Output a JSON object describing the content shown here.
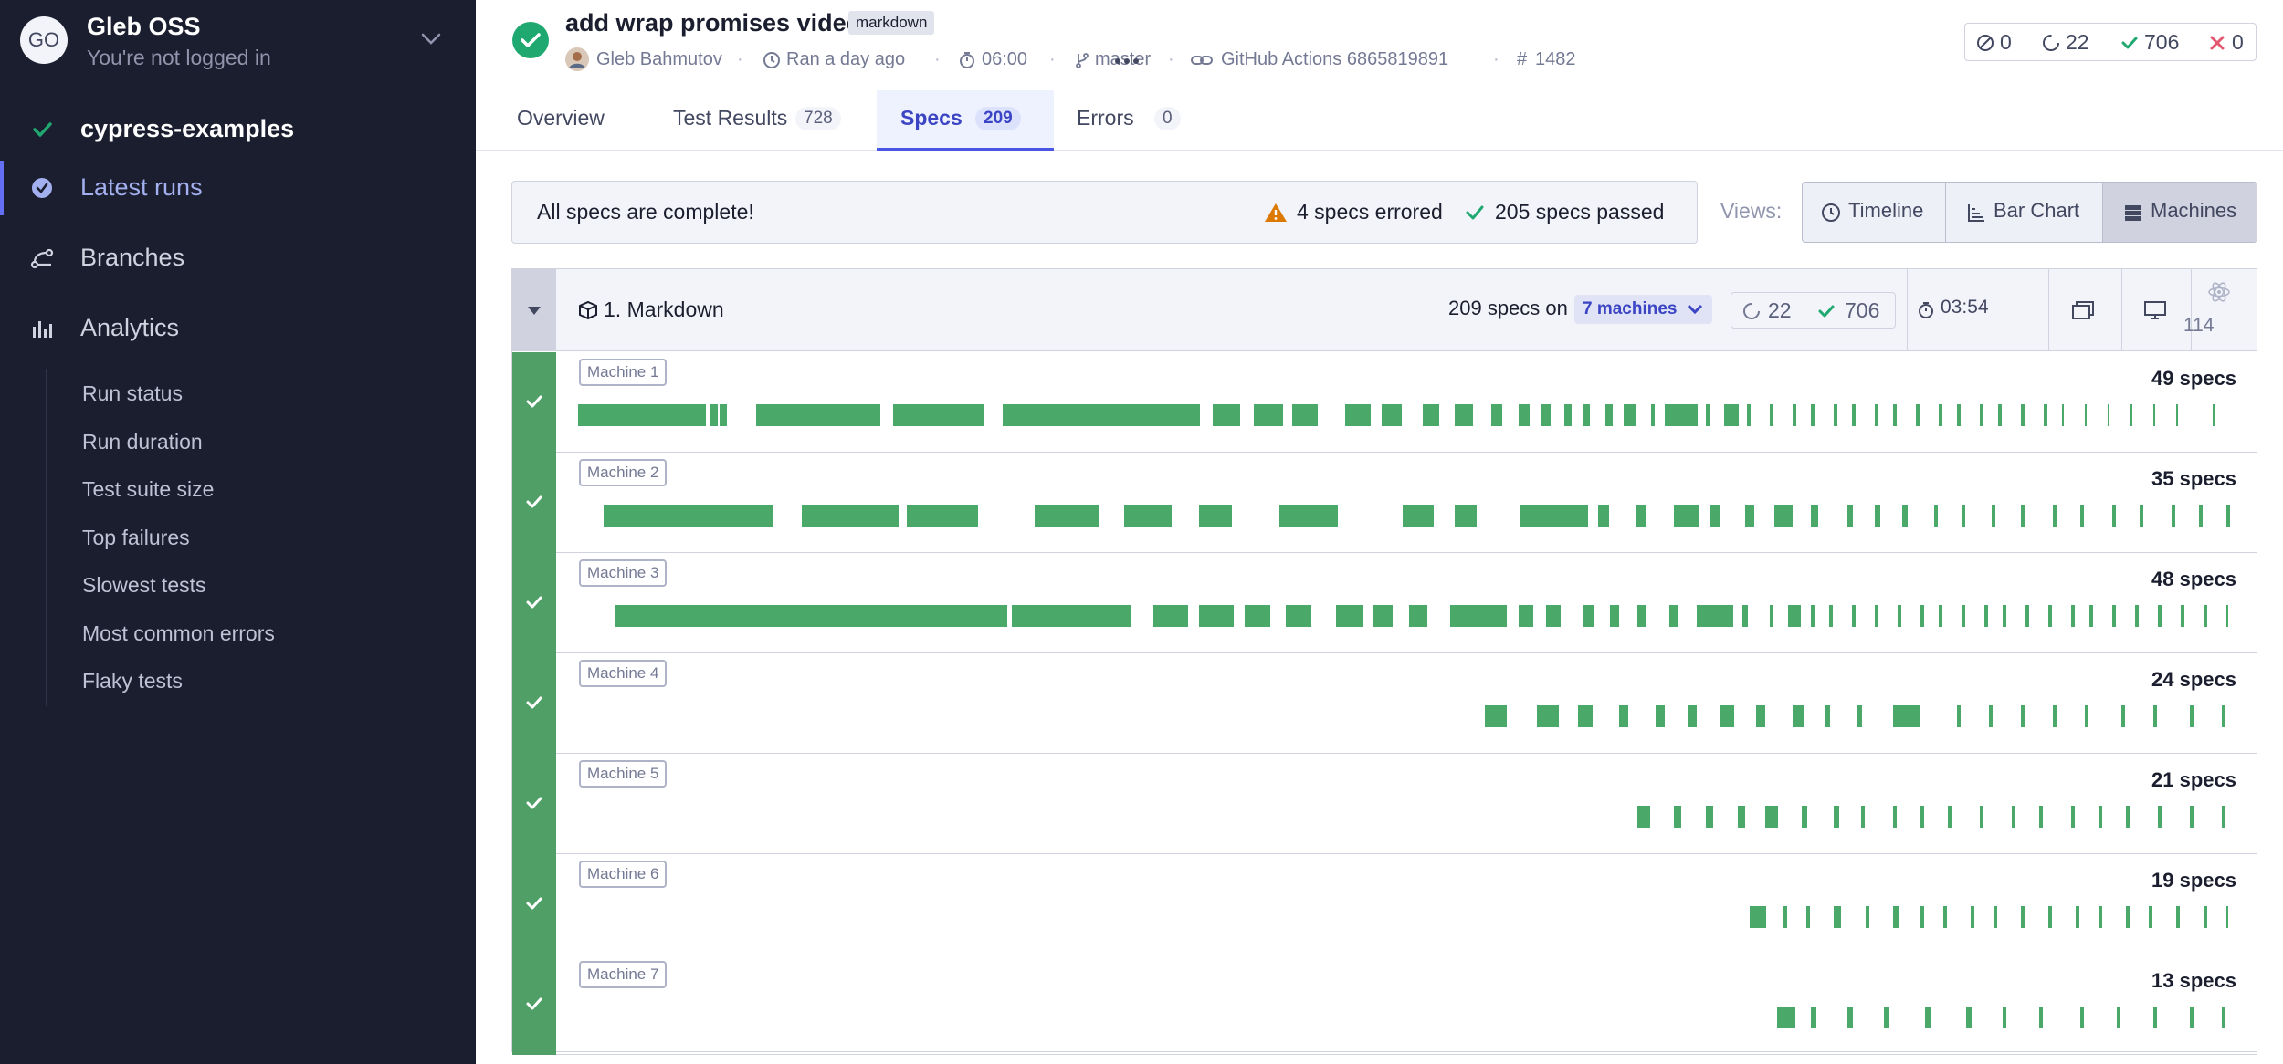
{
  "sidebar": {
    "org": {
      "initials": "GO",
      "name": "Gleb OSS",
      "subtitle": "You're not logged in"
    },
    "project": "cypress-examples",
    "nav": {
      "latest_runs": "Latest runs",
      "branches": "Branches",
      "analytics": "Analytics"
    },
    "analytics_items": [
      "Run status",
      "Run duration",
      "Test suite size",
      "Top failures",
      "Slowest tests",
      "Most common errors",
      "Flaky tests"
    ]
  },
  "run": {
    "title": "add wrap promises video",
    "tag": "markdown",
    "author": "Gleb Bahmutov",
    "ran": "Ran a day ago",
    "duration": "06:00",
    "branch": "master",
    "ci": "GitHub Actions 6865819891",
    "number": "1482",
    "summary": {
      "skipped": "0",
      "pending": "22",
      "passed": "706",
      "failed": "0"
    }
  },
  "tabs": [
    {
      "label": "Overview",
      "count": ""
    },
    {
      "label": "Test Results",
      "count": "728"
    },
    {
      "label": "Specs",
      "count": "209"
    },
    {
      "label": "Errors",
      "count": "0"
    }
  ],
  "banner": {
    "message": "All specs are complete!",
    "errored": "4 specs errored",
    "passed": "205 specs passed"
  },
  "views": {
    "label": "Views:",
    "timeline": "Timeline",
    "bar_chart": "Bar Chart",
    "machines": "Machines"
  },
  "group": {
    "title": "1. Markdown",
    "specs_on": "209 specs on",
    "machines": "7 machines",
    "pending": "22",
    "passed": "706",
    "duration": "03:54",
    "tests": "114"
  },
  "machines": [
    {
      "label": "Machine 1",
      "specs": "49 specs"
    },
    {
      "label": "Machine 2",
      "specs": "35 specs"
    },
    {
      "label": "Machine 3",
      "specs": "48 specs"
    },
    {
      "label": "Machine 4",
      "specs": "24 specs"
    },
    {
      "label": "Machine 5",
      "specs": "21 specs"
    },
    {
      "label": "Machine 6",
      "specs": "19 specs"
    },
    {
      "label": "Machine 7",
      "specs": "13 specs"
    }
  ],
  "colors": {
    "sidebar_bg": "#1b1e2e",
    "accent": "#4956e3",
    "passed": "#1fa971",
    "machine_bar": "#4aa868",
    "error": "#db7903"
  }
}
